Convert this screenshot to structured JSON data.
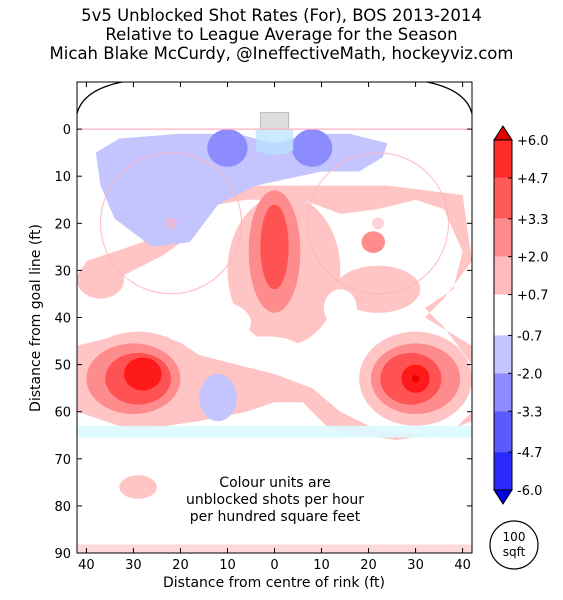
{
  "title_lines": [
    "5v5 Unblocked Shot Rates (For), BOS 2013-2014",
    "Relative to League Average for the Season",
    "Micah Blake McCurdy, @IneffectiveMath, hockeyviz.com"
  ],
  "chart_data": {
    "type": "heatmap",
    "xlabel": "Distance from centre of rink (ft)",
    "ylabel": "Distance from goal line (ft)",
    "xlim": [
      -42,
      42
    ],
    "ylim": [
      -10,
      90
    ],
    "x_ticks": [
      -40,
      -30,
      -20,
      -10,
      0,
      10,
      20,
      30,
      40
    ],
    "x_tick_labels": [
      "40",
      "30",
      "20",
      "10",
      "0",
      "10",
      "20",
      "30",
      "40"
    ],
    "y_ticks": [
      0,
      10,
      20,
      30,
      40,
      50,
      60,
      70,
      80,
      90
    ],
    "y_tick_labels": [
      "0",
      "10",
      "20",
      "30",
      "40",
      "50",
      "60",
      "70",
      "80",
      "90"
    ],
    "colorbar": {
      "tick_values": [
        6.0,
        4.7,
        3.3,
        2.0,
        0.7,
        -0.7,
        -2.0,
        -3.3,
        -4.7,
        -6.0
      ],
      "tick_labels": [
        "+6.0",
        "+4.7",
        "+3.3",
        "+2.0",
        "+0.7",
        "-0.7",
        "-2.0",
        "-3.3",
        "-4.7",
        "-6.0"
      ],
      "level_colors": [
        "#ffffff",
        "#ffc4c4",
        "#ff8c8c",
        "#ff5252",
        "#ff1a1a",
        "#e40000"
      ],
      "level_colors_negative": [
        "#ffffff",
        "#c4c4ff",
        "#8c8cff",
        "#5252ff",
        "#1a1aff",
        "#0000e4"
      ]
    },
    "note": [
      "Colour units are",
      "unblocked shots per hour",
      "per hundred square feet"
    ],
    "scale_badge": [
      "100",
      "sqft"
    ],
    "hotspots": [
      {
        "x": -30,
        "y": 52,
        "value": 4.7
      },
      {
        "x": -28,
        "y": 52,
        "value": 5.5
      },
      {
        "x": 30,
        "y": 53,
        "value": 5.3
      },
      {
        "x": 0,
        "y": 25,
        "value": 3.1
      },
      {
        "x": 22,
        "y": 24,
        "value": 2.4
      },
      {
        "x": -10,
        "y": 4,
        "value": -3.6
      },
      {
        "x": 8,
        "y": 4,
        "value": -3.6
      },
      {
        "x": -12,
        "y": 57,
        "value": -1.8
      }
    ]
  }
}
